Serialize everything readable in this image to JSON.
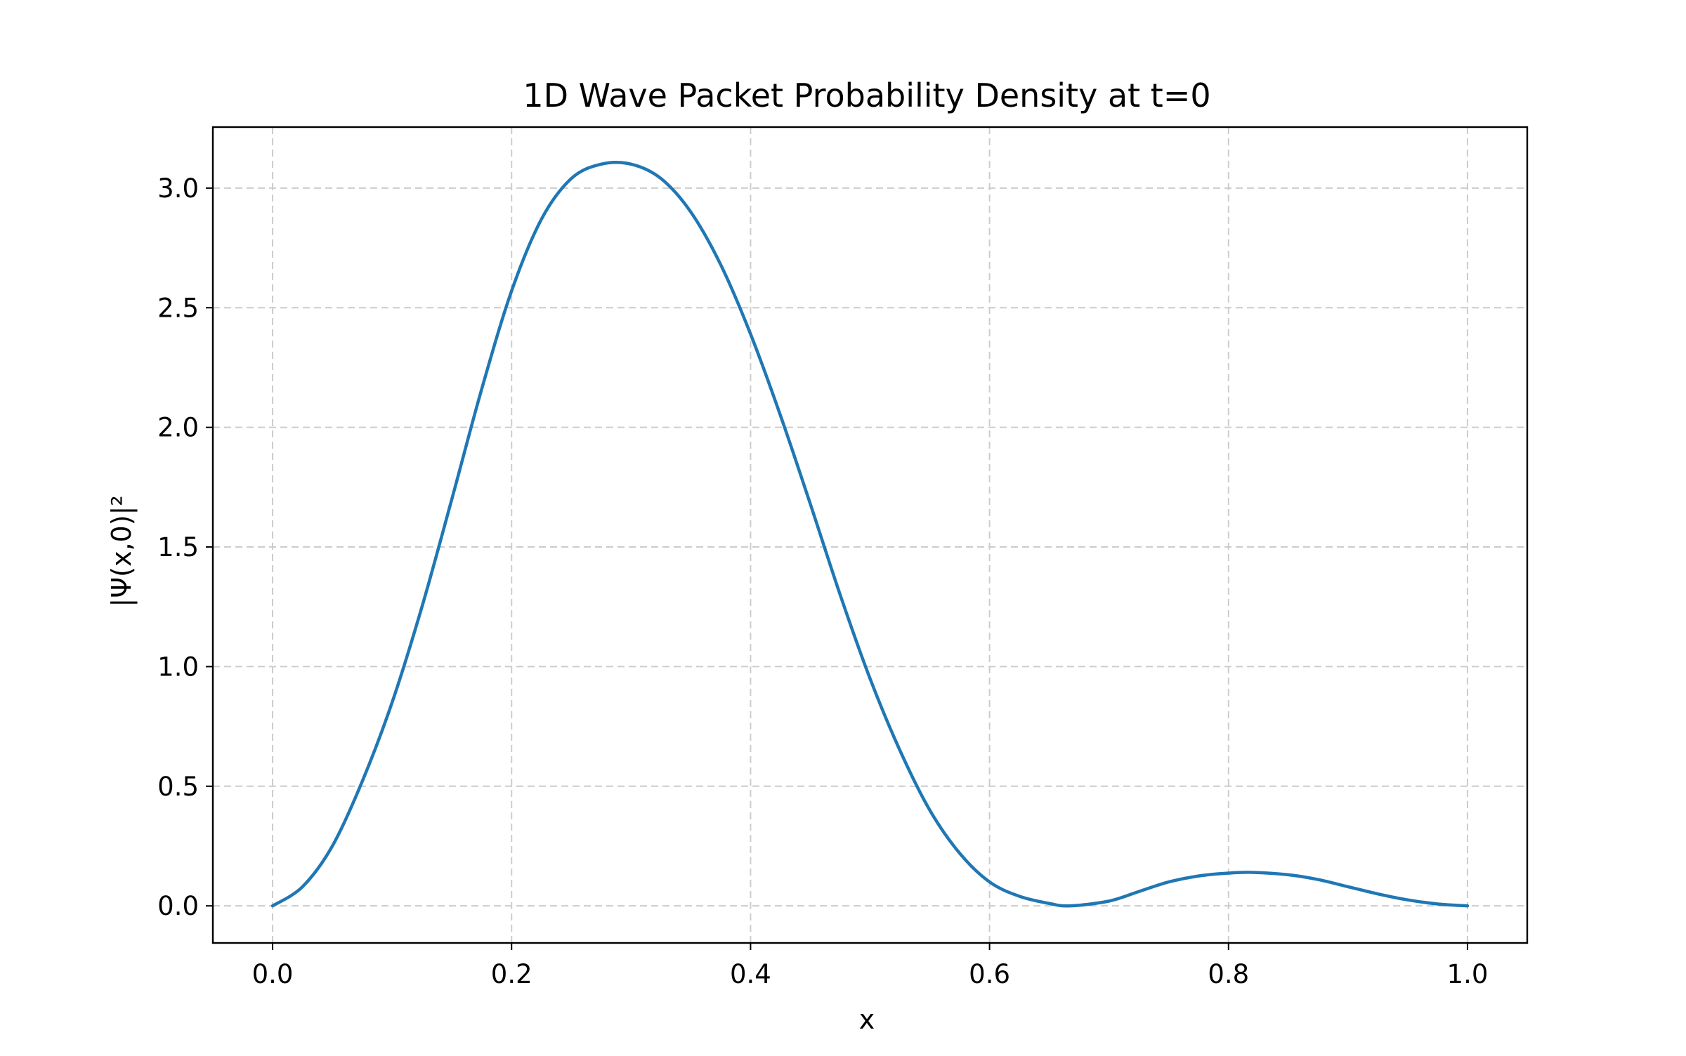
{
  "chart_data": {
    "type": "line",
    "title": "1D Wave Packet Probability Density at t=0",
    "xlabel": "x",
    "ylabel": "|Ψ(x,0)|²",
    "xlim": [
      -0.05,
      1.05
    ],
    "ylim": [
      -0.155,
      3.255
    ],
    "xticks": [
      0.0,
      0.2,
      0.4,
      0.6,
      0.8,
      1.0
    ],
    "xtick_labels": [
      "0.0",
      "0.2",
      "0.4",
      "0.6",
      "0.8",
      "1.0"
    ],
    "yticks": [
      0.0,
      0.5,
      1.0,
      1.5,
      2.0,
      2.5,
      3.0
    ],
    "ytick_labels": [
      "0.0",
      "0.5",
      "1.0",
      "1.5",
      "2.0",
      "2.5",
      "3.0"
    ],
    "grid": true,
    "legend": "none",
    "series": [
      {
        "color": "#1f77b4",
        "x": [
          0.0,
          0.025,
          0.05,
          0.075,
          0.1,
          0.125,
          0.15,
          0.175,
          0.2,
          0.225,
          0.25,
          0.275,
          0.3,
          0.325,
          0.35,
          0.375,
          0.4,
          0.425,
          0.45,
          0.475,
          0.5,
          0.525,
          0.55,
          0.575,
          0.6,
          0.625,
          0.65,
          0.667,
          0.7,
          0.725,
          0.75,
          0.775,
          0.8,
          0.82,
          0.85,
          0.875,
          0.9,
          0.925,
          0.95,
          0.975,
          1.0
        ],
        "y": [
          0.0,
          0.08,
          0.25,
          0.52,
          0.85,
          1.25,
          1.7,
          2.16,
          2.57,
          2.87,
          3.04,
          3.1,
          3.1,
          3.04,
          2.9,
          2.68,
          2.39,
          2.05,
          1.68,
          1.3,
          0.95,
          0.65,
          0.4,
          0.22,
          0.1,
          0.04,
          0.01,
          0.0,
          0.02,
          0.06,
          0.1,
          0.125,
          0.137,
          0.14,
          0.13,
          0.11,
          0.08,
          0.05,
          0.025,
          0.008,
          0.0
        ]
      }
    ]
  }
}
